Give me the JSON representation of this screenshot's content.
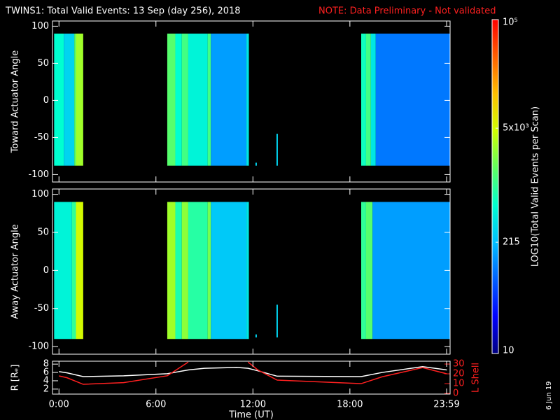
{
  "title": "TWINS1: Total Valid Events: 13 Sep (day 256), 2018",
  "note": "NOTE: Data Preliminary - Not validated",
  "stamp": "6 Jun 19",
  "colorbar": {
    "label": "LOG10(Total Valid Events per Scan)",
    "log": true,
    "lim": [
      10,
      100000
    ],
    "ticks": [
      {
        "value": 100000,
        "label": "10⁵"
      },
      {
        "value": 5000,
        "label": "5x10³"
      },
      215,
      10
    ],
    "colors": [
      "#000080",
      "#0000ff",
      "#0060ff",
      "#00c0ff",
      "#00ffd0",
      "#60ff60",
      "#d0ff00",
      "#ffc000",
      "#ff6000",
      "#ff0000"
    ]
  },
  "chart_data": [
    {
      "type": "heatmap",
      "y_label": "Toward Actuator Angle",
      "xlim": [
        -0.4,
        24.2
      ],
      "ylim": [
        -110,
        107
      ],
      "yticks": [
        100,
        50,
        0,
        -50,
        -100
      ],
      "angle_range": [
        -88,
        90
      ],
      "bins": [
        {
          "x": [
            -0.3,
            0.3
          ],
          "value": 600
        },
        {
          "x": [
            0.3,
            0.95
          ],
          "value": 300
        },
        {
          "x": [
            0.95,
            1.05
          ],
          "value": 1500
        },
        {
          "x": [
            1.05,
            1.5
          ],
          "value": 3000
        },
        {
          "x": [
            6.7,
            7.2
          ],
          "value": 1500
        },
        {
          "x": [
            7.2,
            7.6
          ],
          "value": 600
        },
        {
          "x": [
            7.6,
            8.0
          ],
          "value": 1200
        },
        {
          "x": [
            8.0,
            9.2
          ],
          "value": 500
        },
        {
          "x": [
            9.2,
            9.4
          ],
          "value": 1200
        },
        {
          "x": [
            9.4,
            11.6
          ],
          "value": 150
        },
        {
          "x": [
            11.6,
            11.75
          ],
          "value": 400
        },
        {
          "x": [
            18.7,
            19.0
          ],
          "value": 700
        },
        {
          "x": [
            19.0,
            19.3
          ],
          "value": 1200
        },
        {
          "x": [
            19.3,
            19.6
          ],
          "value": 400
        },
        {
          "x": [
            19.6,
            24.2
          ],
          "value": 100
        }
      ],
      "spikes": [
        {
          "x": 12.2,
          "y": [
            -88,
            -84
          ],
          "value": 300
        },
        {
          "x": 13.5,
          "y": [
            -88,
            -45
          ],
          "value": 300
        }
      ]
    },
    {
      "type": "heatmap",
      "y_label": "Away Actuator Angle",
      "xlim": [
        -0.4,
        24.2
      ],
      "ylim": [
        -110,
        107
      ],
      "yticks": [
        100,
        50,
        0,
        -50,
        -100
      ],
      "angle_range": [
        -90,
        90
      ],
      "bins": [
        {
          "x": [
            -0.3,
            0.8
          ],
          "value": 500
        },
        {
          "x": [
            0.8,
            1.05
          ],
          "value": 1000
        },
        {
          "x": [
            1.05,
            1.5
          ],
          "value": 5000
        },
        {
          "x": [
            6.7,
            7.2
          ],
          "value": 3000
        },
        {
          "x": [
            7.2,
            7.6
          ],
          "value": 800
        },
        {
          "x": [
            7.6,
            8.0
          ],
          "value": 2500
        },
        {
          "x": [
            8.0,
            9.2
          ],
          "value": 900
        },
        {
          "x": [
            9.2,
            9.4
          ],
          "value": 2000
        },
        {
          "x": [
            9.4,
            11.6
          ],
          "value": 250
        },
        {
          "x": [
            11.6,
            11.75
          ],
          "value": 400
        },
        {
          "x": [
            18.7,
            19.0
          ],
          "value": 1000
        },
        {
          "x": [
            19.0,
            19.4
          ],
          "value": 1500
        },
        {
          "x": [
            19.4,
            24.2
          ],
          "value": 150
        }
      ],
      "spikes": [
        {
          "x": 12.2,
          "y": [
            -88,
            -84
          ],
          "value": 300
        },
        {
          "x": 13.5,
          "y": [
            -88,
            -45
          ],
          "value": 300
        }
      ]
    },
    {
      "type": "line",
      "x_label": "Time (UT)",
      "xlim": [
        -0.4,
        24.2
      ],
      "ylim": [
        0.8,
        8.7
      ],
      "y2lim": [
        -0.7,
        32.9
      ],
      "xticks": [
        {
          "value": 0,
          "label": "0:00"
        },
        {
          "value": 6,
          "label": "6:00"
        },
        {
          "value": 12,
          "label": "12:00"
        },
        {
          "value": 18,
          "label": "18:00"
        },
        {
          "value": 23.983,
          "label": "23:59"
        }
      ],
      "yticks": [
        2,
        4,
        6,
        8
      ],
      "y2ticks": [
        0,
        10,
        20,
        30
      ],
      "x": [
        0,
        0.5,
        1.5,
        4,
        6.7,
        8,
        9,
        11,
        11.7,
        12.3,
        13.5,
        18.7,
        20,
        22.5,
        24
      ],
      "series": [
        {
          "name": "R [Rₑ]",
          "color": "#ffffff",
          "values": [
            6.2,
            5.9,
            5.0,
            5.2,
            5.7,
            6.6,
            7.0,
            7.2,
            7.0,
            6.4,
            5.1,
            5.0,
            6.0,
            7.4,
            6.6
          ]
        },
        {
          "name": "L Shell",
          "color": "#ff2020",
          "axis": "y2",
          "values": [
            17.9,
            16,
            9.3,
            11,
            18,
            32,
            null,
            null,
            32,
            24,
            13.6,
            10,
            17,
            26.4,
            20
          ]
        }
      ]
    }
  ]
}
